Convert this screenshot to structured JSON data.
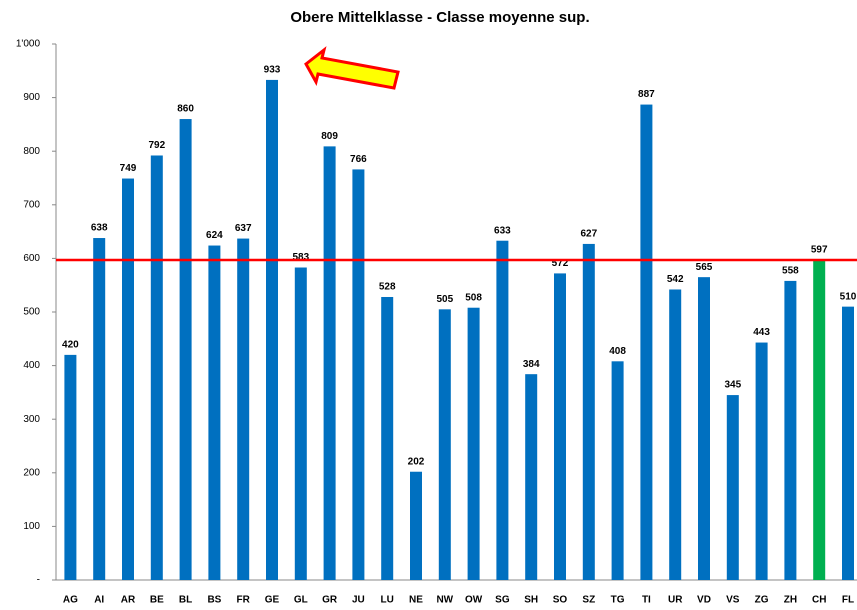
{
  "chart_data": {
    "type": "bar",
    "title": "Obere Mittelklasse - Classe moyenne sup.",
    "categories": [
      "AG",
      "AI",
      "AR",
      "BE",
      "BL",
      "BS",
      "FR",
      "GE",
      "GL",
      "GR",
      "JU",
      "LU",
      "NE",
      "NW",
      "OW",
      "SG",
      "SH",
      "SO",
      "SZ",
      "TG",
      "TI",
      "UR",
      "VD",
      "VS",
      "ZG",
      "ZH",
      "CH",
      "FL"
    ],
    "values": [
      420,
      638,
      749,
      792,
      860,
      624,
      637,
      933,
      583,
      809,
      766,
      528,
      202,
      505,
      508,
      633,
      384,
      572,
      627,
      408,
      887,
      542,
      565,
      345,
      443,
      558,
      597,
      510
    ],
    "colors": [
      "#0070c0",
      "#0070c0",
      "#0070c0",
      "#0070c0",
      "#0070c0",
      "#0070c0",
      "#0070c0",
      "#0070c0",
      "#0070c0",
      "#0070c0",
      "#0070c0",
      "#0070c0",
      "#0070c0",
      "#0070c0",
      "#0070c0",
      "#0070c0",
      "#0070c0",
      "#0070c0",
      "#0070c0",
      "#0070c0",
      "#0070c0",
      "#0070c0",
      "#0070c0",
      "#0070c0",
      "#0070c0",
      "#0070c0",
      "#00b050",
      "#0070c0"
    ],
    "ylim": [
      0,
      1000
    ],
    "yticks": [
      {
        "value": 0,
        "label": "-"
      },
      100,
      200,
      300,
      400,
      500,
      600,
      700,
      800,
      900,
      {
        "value": 1000,
        "label": "1'000"
      }
    ],
    "reference_line": {
      "value": 597,
      "color": "#ff0000"
    },
    "grid": false
  }
}
